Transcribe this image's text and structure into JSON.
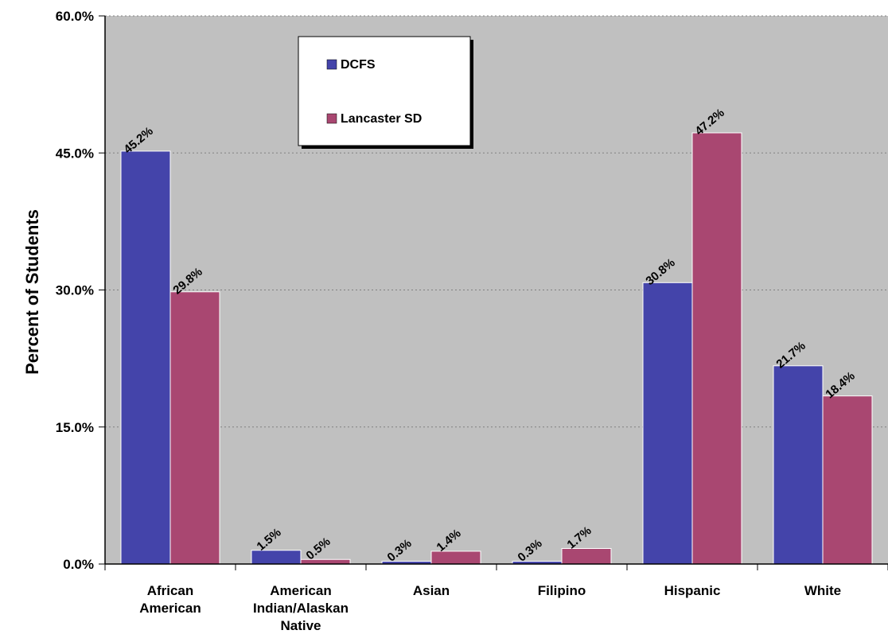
{
  "chart_data": {
    "type": "bar",
    "categories": [
      [
        "African",
        "American"
      ],
      [
        "American",
        "Indian/Alaskan",
        "Native"
      ],
      [
        "Asian"
      ],
      [
        "Filipino"
      ],
      [
        "Hispanic"
      ],
      [
        "White"
      ]
    ],
    "series": [
      {
        "name": "DCFS",
        "color": "#4444AA",
        "values": [
          45.2,
          1.5,
          0.3,
          0.3,
          30.8,
          21.7
        ],
        "labels": [
          "45.2%",
          "1.5%",
          "0.3%",
          "0.3%",
          "30.8%",
          "21.7%"
        ]
      },
      {
        "name": "Lancaster SD",
        "color": "#A94771",
        "values": [
          29.8,
          0.5,
          1.4,
          1.7,
          47.2,
          18.4
        ],
        "labels": [
          "29.8%",
          "0.5%",
          "1.4%",
          "1.7%",
          "47.2%",
          "18.4%"
        ]
      }
    ],
    "ylabel": "Percent of Students",
    "ylim": [
      0,
      60
    ],
    "yticks": [
      0,
      15,
      30,
      45,
      60
    ],
    "ytick_labels": [
      "0.0%",
      "15.0%",
      "30.0%",
      "45.0%",
      "60.0%"
    ],
    "grid": true,
    "legend_position": "top-center",
    "plot_background": "#C0C0C0"
  }
}
